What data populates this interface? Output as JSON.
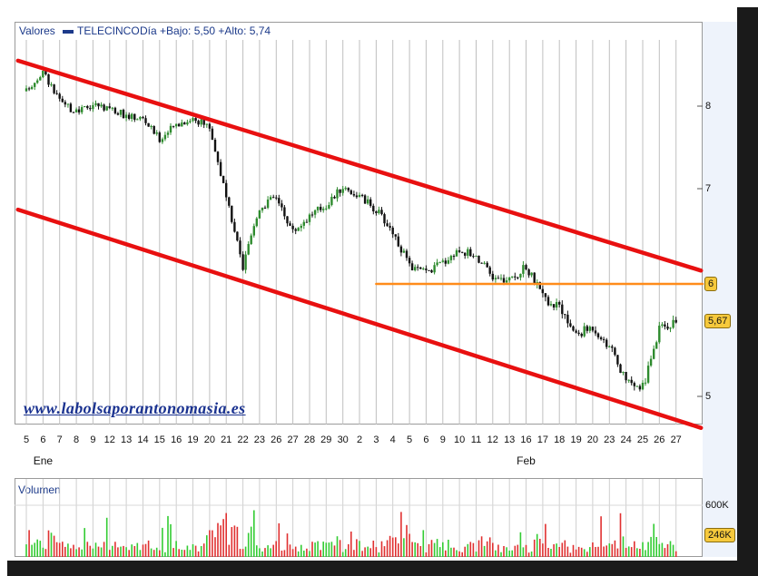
{
  "legend": {
    "prefix": "Valores",
    "series_name": "TELECINCO",
    "stats": "Día +Bajo: 5,50 +Alto: 5,74"
  },
  "watermark": "www.labolsaporantonomasia.es",
  "volume_panel": {
    "title": "Volumen"
  },
  "colors": {
    "price_up": "#2e8b2e",
    "price_down": "#111111",
    "channel": "#e81010",
    "support": "#ff8c1a",
    "volume_up": "#33cc33",
    "volume_down": "#e03030",
    "badge": "#f6c93c",
    "legend_text": "#1c3a8a"
  },
  "chart_data": [
    {
      "type": "candlestick",
      "series": [
        {
          "name": "TELECINCO"
        }
      ],
      "x_tick_labels": [
        "5",
        "6",
        "7",
        "8",
        "9",
        "12",
        "13",
        "14",
        "15",
        "16",
        "19",
        "20",
        "21",
        "22",
        "23",
        "26",
        "27",
        "28",
        "29",
        "30",
        "2",
        "3",
        "4",
        "5",
        "6",
        "9",
        "10",
        "11",
        "12",
        "13",
        "16",
        "17",
        "18",
        "19",
        "20",
        "23",
        "24",
        "25",
        "26",
        "27"
      ],
      "month_labels": [
        {
          "label": "Ene",
          "at_tick": 1
        },
        {
          "label": "Feb",
          "at_tick": 30
        }
      ],
      "y_axis_labels": [
        "8",
        "7",
        "6",
        "5"
      ],
      "ylim": [
        4.7,
        8.6
      ],
      "close_points": [
        [
          0,
          8.18
        ],
        [
          1,
          8.42
        ],
        [
          2,
          8.05
        ],
        [
          3,
          7.92
        ],
        [
          4,
          8.02
        ],
        [
          5,
          7.98
        ],
        [
          6,
          7.88
        ],
        [
          7,
          7.85
        ],
        [
          8,
          7.6
        ],
        [
          9,
          7.78
        ],
        [
          10,
          7.85
        ],
        [
          11,
          7.75
        ],
        [
          12,
          6.9
        ],
        [
          13,
          6.17
        ],
        [
          14,
          6.8
        ],
        [
          15,
          6.92
        ],
        [
          16,
          6.55
        ],
        [
          17,
          6.72
        ],
        [
          18,
          6.83
        ],
        [
          19,
          7.02
        ],
        [
          20,
          6.92
        ],
        [
          21,
          6.78
        ],
        [
          22,
          6.55
        ],
        [
          23,
          6.18
        ],
        [
          24,
          6.12
        ],
        [
          25,
          6.23
        ],
        [
          26,
          6.36
        ],
        [
          27,
          6.3
        ],
        [
          28,
          6.06
        ],
        [
          29,
          6.03
        ],
        [
          30,
          6.18
        ],
        [
          31,
          5.88
        ],
        [
          32,
          5.78
        ],
        [
          33,
          5.55
        ],
        [
          34,
          5.62
        ],
        [
          35,
          5.45
        ],
        [
          36,
          5.12
        ],
        [
          37,
          5.08
        ],
        [
          38,
          5.6
        ],
        [
          39,
          5.67
        ]
      ],
      "channel": {
        "upper": [
          [
            -0.5,
            8.55
          ],
          [
            40.5,
            6.14
          ]
        ],
        "lower": [
          [
            -0.5,
            6.78
          ],
          [
            40.5,
            4.72
          ]
        ]
      },
      "support_level": {
        "value": 6.0,
        "from": 21,
        "to": 40.6
      },
      "last_value_badges": [
        "6",
        "5,67"
      ]
    },
    {
      "type": "bar",
      "title": "Volumen",
      "y_axis_labels": [
        "600K"
      ],
      "last_value_badge": "246K",
      "ylim": [
        0,
        750000
      ]
    }
  ]
}
